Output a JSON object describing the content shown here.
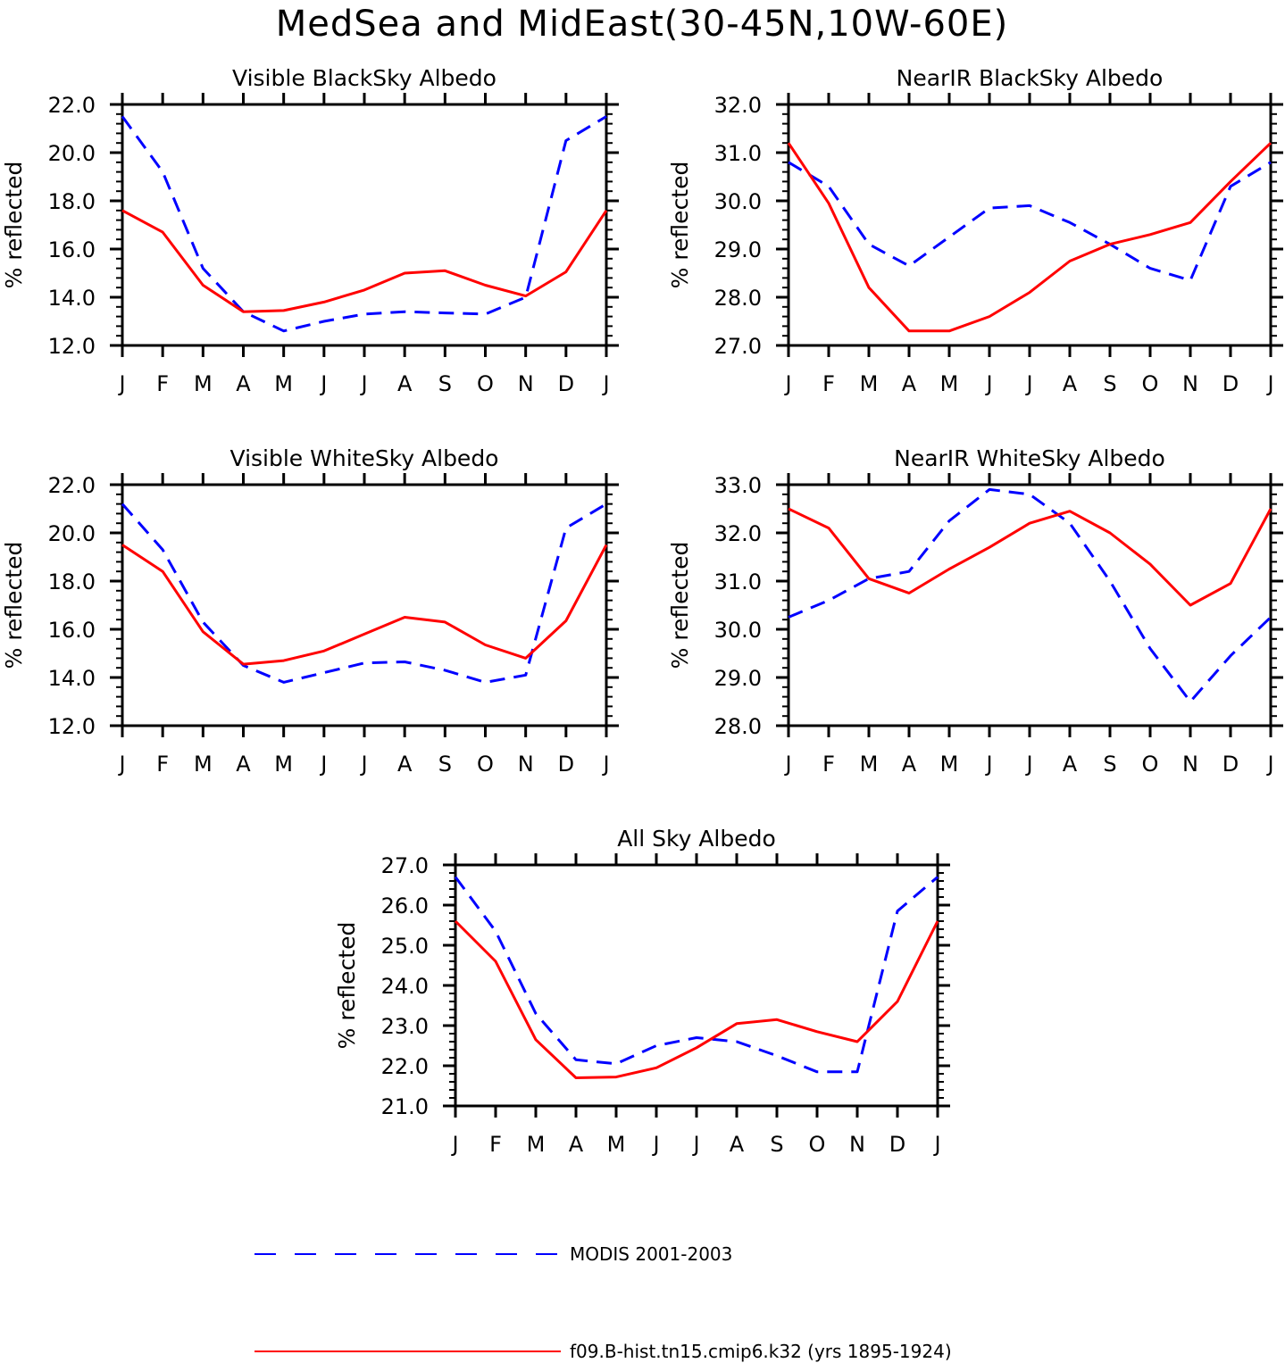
{
  "figure": {
    "title": "MedSea and MidEast(30-45N,10W-60E)"
  },
  "legend": [
    {
      "label": "MODIS 2001-2003",
      "color": "#0000ff",
      "style": "dashed"
    },
    {
      "label": "f09.B-hist.tn15.cmip6.k32 (yrs 1895-1924)",
      "color": "#ff0000",
      "style": "solid"
    }
  ],
  "chart_data": [
    {
      "type": "line",
      "title": "Visible BlackSky Albedo",
      "ylabel": "% reflected",
      "xlabel": "",
      "categories": [
        "J",
        "F",
        "M",
        "A",
        "M",
        "J",
        "J",
        "A",
        "S",
        "O",
        "N",
        "D",
        "J"
      ],
      "ylim": [
        12,
        22
      ],
      "yticks": [
        "12.0",
        "14.0",
        "16.0",
        "18.0",
        "20.0",
        "22.0"
      ],
      "series": [
        {
          "name": "MODIS 2001-2003",
          "color": "#0000ff",
          "style": "dashed",
          "values": [
            21.5,
            19.2,
            15.2,
            13.4,
            12.6,
            13.0,
            13.3,
            13.4,
            13.35,
            13.3,
            14.0,
            20.5,
            21.5
          ]
        },
        {
          "name": "f09.B-hist.tn15.cmip6.k32 (yrs 1895-1924)",
          "color": "#ff0000",
          "style": "solid",
          "values": [
            17.6,
            16.7,
            14.5,
            13.4,
            13.45,
            13.8,
            14.3,
            15.0,
            15.1,
            14.5,
            14.05,
            15.05,
            17.6
          ]
        }
      ]
    },
    {
      "type": "line",
      "title": "NearIR BlackSky Albedo",
      "ylabel": "% reflected",
      "xlabel": "",
      "categories": [
        "J",
        "F",
        "M",
        "A",
        "M",
        "J",
        "J",
        "A",
        "S",
        "O",
        "N",
        "D",
        "J"
      ],
      "ylim": [
        27,
        32
      ],
      "yticks": [
        "27.0",
        "28.0",
        "29.0",
        "30.0",
        "31.0",
        "32.0"
      ],
      "series": [
        {
          "name": "MODIS 2001-2003",
          "color": "#0000ff",
          "style": "dashed",
          "values": [
            30.8,
            30.3,
            29.1,
            28.65,
            29.25,
            29.85,
            29.9,
            29.55,
            29.1,
            28.6,
            28.35,
            30.3,
            30.8
          ]
        },
        {
          "name": "f09.B-hist.tn15.cmip6.k32 (yrs 1895-1924)",
          "color": "#ff0000",
          "style": "solid",
          "values": [
            31.2,
            29.95,
            28.2,
            27.3,
            27.3,
            27.6,
            28.1,
            28.75,
            29.1,
            29.3,
            29.55,
            30.4,
            31.2
          ]
        }
      ]
    },
    {
      "type": "line",
      "title": "Visible WhiteSky Albedo",
      "ylabel": "% reflected",
      "xlabel": "",
      "categories": [
        "J",
        "F",
        "M",
        "A",
        "M",
        "J",
        "J",
        "A",
        "S",
        "O",
        "N",
        "D",
        "J"
      ],
      "ylim": [
        12,
        22
      ],
      "yticks": [
        "12.0",
        "14.0",
        "16.0",
        "18.0",
        "20.0",
        "22.0"
      ],
      "series": [
        {
          "name": "MODIS 2001-2003",
          "color": "#0000ff",
          "style": "dashed",
          "values": [
            21.2,
            19.3,
            16.3,
            14.5,
            13.8,
            14.2,
            14.6,
            14.65,
            14.3,
            13.8,
            14.1,
            20.2,
            21.2
          ]
        },
        {
          "name": "f09.B-hist.tn15.cmip6.k32 (yrs 1895-1924)",
          "color": "#ff0000",
          "style": "solid",
          "values": [
            19.5,
            18.4,
            15.9,
            14.55,
            14.7,
            15.1,
            15.8,
            16.5,
            16.3,
            15.35,
            14.8,
            16.35,
            19.5
          ]
        }
      ]
    },
    {
      "type": "line",
      "title": "NearIR WhiteSky Albedo",
      "ylabel": "% reflected",
      "xlabel": "",
      "categories": [
        "J",
        "F",
        "M",
        "A",
        "M",
        "J",
        "J",
        "A",
        "S",
        "O",
        "N",
        "D",
        "J"
      ],
      "ylim": [
        28,
        33
      ],
      "yticks": [
        "28.0",
        "29.0",
        "30.0",
        "31.0",
        "32.0",
        "33.0"
      ],
      "series": [
        {
          "name": "MODIS 2001-2003",
          "color": "#0000ff",
          "style": "dashed",
          "values": [
            30.25,
            30.6,
            31.05,
            31.2,
            32.25,
            32.9,
            32.8,
            32.2,
            31.0,
            29.6,
            28.5,
            29.45,
            30.25
          ]
        },
        {
          "name": "f09.B-hist.tn15.cmip6.k32 (yrs 1895-1924)",
          "color": "#ff0000",
          "style": "solid",
          "values": [
            32.5,
            32.1,
            31.05,
            30.75,
            31.25,
            31.7,
            32.2,
            32.45,
            32.0,
            31.35,
            30.5,
            30.95,
            32.5
          ]
        }
      ]
    },
    {
      "type": "line",
      "title": "All Sky Albedo",
      "ylabel": "% reflected",
      "xlabel": "",
      "categories": [
        "J",
        "F",
        "M",
        "A",
        "M",
        "J",
        "J",
        "A",
        "S",
        "O",
        "N",
        "D",
        "J"
      ],
      "ylim": [
        21,
        27
      ],
      "yticks": [
        "21.0",
        "22.0",
        "23.0",
        "24.0",
        "25.0",
        "26.0",
        "27.0"
      ],
      "series": [
        {
          "name": "MODIS 2001-2003",
          "color": "#0000ff",
          "style": "dashed",
          "values": [
            26.7,
            25.35,
            23.3,
            22.15,
            22.05,
            22.5,
            22.7,
            22.6,
            22.25,
            21.85,
            21.85,
            25.85,
            26.7
          ]
        },
        {
          "name": "f09.B-hist.tn15.cmip6.k32 (yrs 1895-1924)",
          "color": "#ff0000",
          "style": "solid",
          "values": [
            25.6,
            24.6,
            22.65,
            21.7,
            21.72,
            21.95,
            22.45,
            23.05,
            23.15,
            22.85,
            22.6,
            23.6,
            25.6
          ]
        }
      ]
    }
  ]
}
